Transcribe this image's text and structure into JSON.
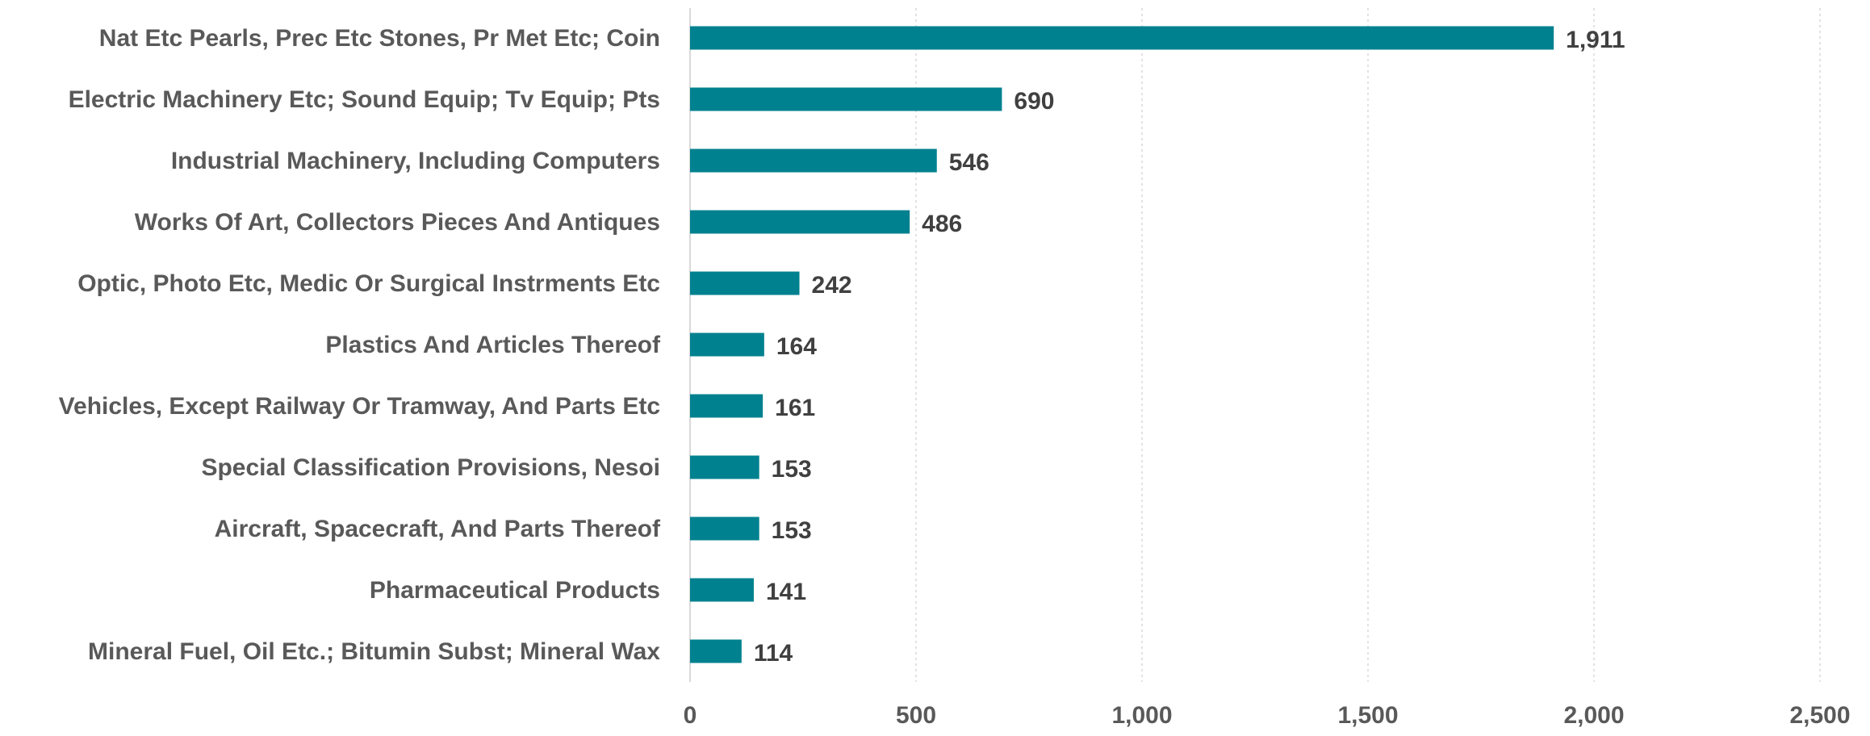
{
  "chart_data": {
    "type": "bar",
    "orientation": "horizontal",
    "title": "",
    "xlabel": "",
    "ylabel": "",
    "categories": [
      "Nat Etc Pearls, Prec Etc Stones, Pr Met Etc; Coin",
      "Electric Machinery Etc; Sound Equip; Tv Equip; Pts",
      "Industrial Machinery, Including Computers",
      "Works Of Art, Collectors Pieces And Antiques",
      "Optic, Photo Etc, Medic Or Surgical Instrments Etc",
      "Plastics And Articles Thereof",
      "Vehicles, Except Railway Or Tramway, And Parts Etc",
      "Special Classification Provisions, Nesoi",
      "Aircraft, Spacecraft, And Parts Thereof",
      "Pharmaceutical Products",
      "Mineral Fuel, Oil Etc.; Bitumin Subst; Mineral Wax"
    ],
    "values": [
      1911,
      690,
      546,
      486,
      242,
      164,
      161,
      153,
      153,
      141,
      114
    ],
    "value_labels": [
      "1,911",
      "690",
      "546",
      "486",
      "242",
      "164",
      "161",
      "153",
      "153",
      "141",
      "114"
    ],
    "xlim": [
      0,
      2500
    ],
    "x_ticks": [
      0,
      500,
      1000,
      1500,
      2000,
      2500
    ],
    "x_tick_labels": [
      "0",
      "500",
      "1,000",
      "1,500",
      "2,000",
      "2,500"
    ],
    "grid": true,
    "bar_color": "#00818f"
  }
}
